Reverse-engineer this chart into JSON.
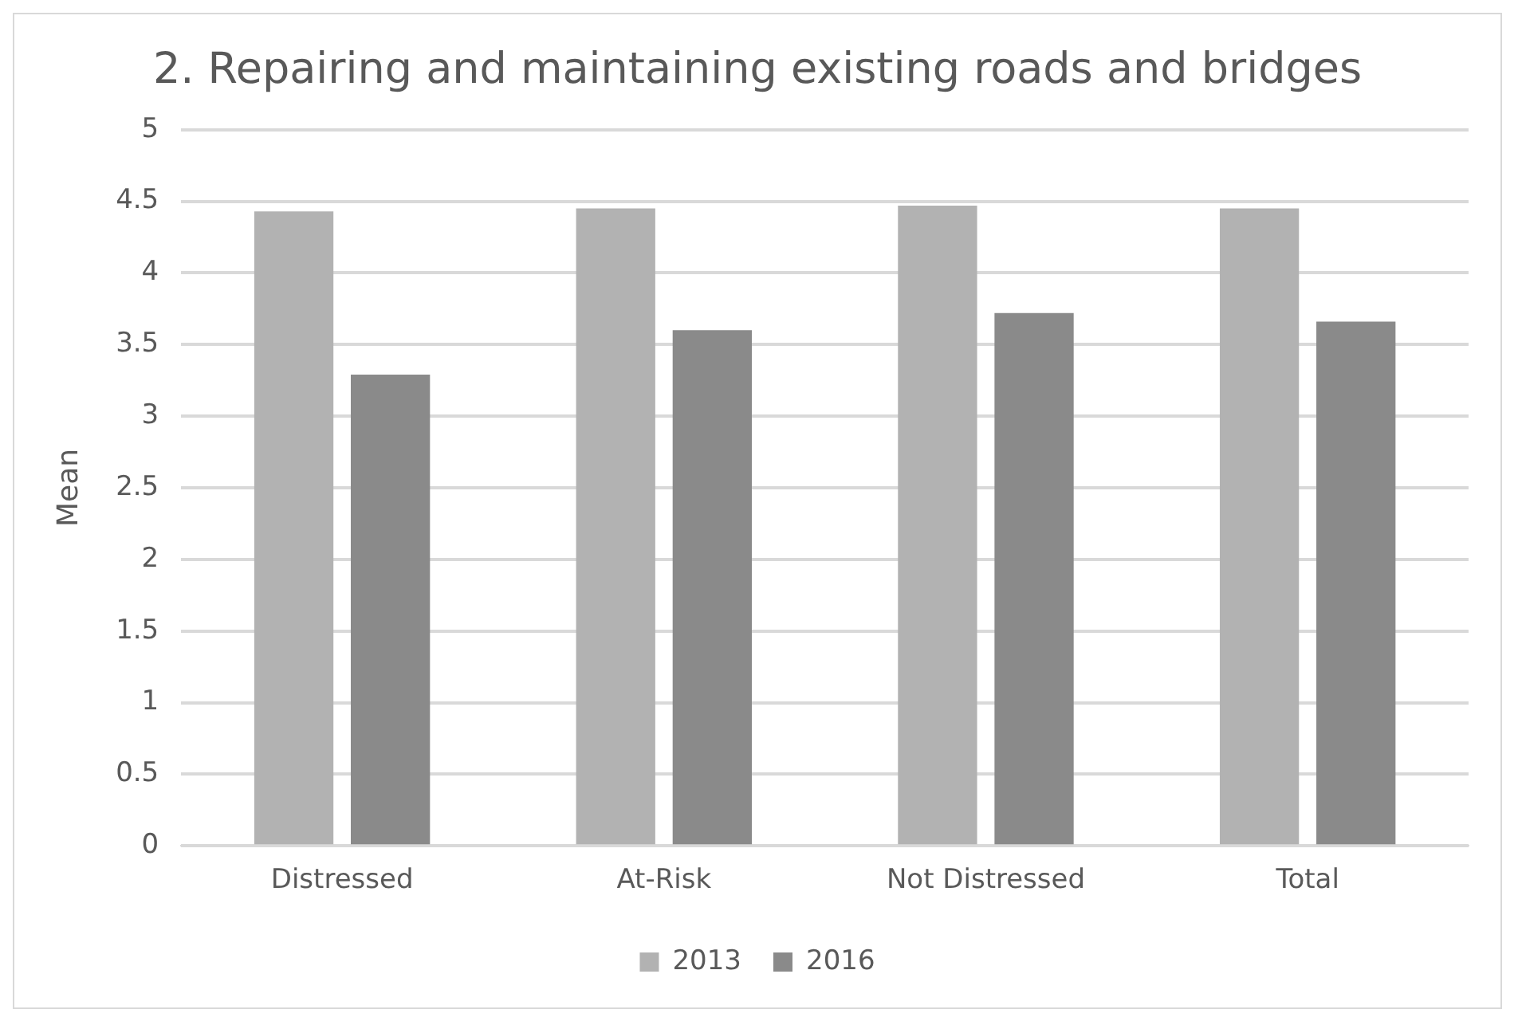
{
  "chart_data": {
    "type": "bar",
    "title": "2. Repairing and maintaining existing roads and bridges",
    "ylabel": "Mean",
    "categories": [
      "Distressed",
      "At-Risk",
      "Not Distressed",
      "Total"
    ],
    "series": [
      {
        "name": "2013",
        "color": "#b2b2b2",
        "values": [
          4.43,
          4.45,
          4.47,
          4.45
        ]
      },
      {
        "name": "2016",
        "color": "#8a8a8a",
        "values": [
          3.29,
          3.6,
          3.72,
          3.66
        ]
      }
    ],
    "ylim": [
      0,
      5
    ],
    "yticks": [
      0,
      0.5,
      1,
      1.5,
      2,
      2.5,
      3,
      3.5,
      4,
      4.5,
      5
    ],
    "grid": "y",
    "legend": "bottom"
  }
}
